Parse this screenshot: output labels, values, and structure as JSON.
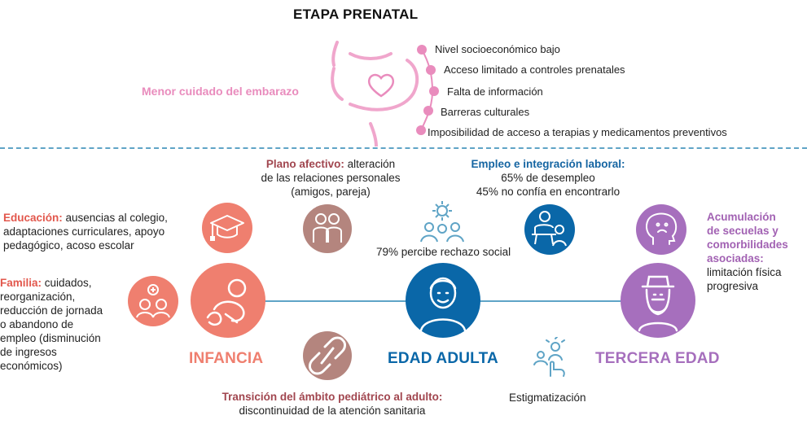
{
  "title": "ETAPA PRENATAL",
  "prenatal": {
    "label": "Menor cuidado del embarazo",
    "factors": [
      "Nivel socioeconómico bajo",
      "Acceso limitado a controles prenatales",
      "Falta de información",
      "Barreras culturales",
      "Imposibilidad de acceso a terapias y medicamentos preventivos"
    ]
  },
  "stages": {
    "infancia": "INFANCIA",
    "adulta": "EDAD ADULTA",
    "tercera": "TERCERA EDAD"
  },
  "plano": {
    "head": "Plano afectivo:",
    "line1": " alteración",
    "line2": "de las relaciones personales",
    "line3": "(amigos, pareja)"
  },
  "empleo": {
    "head": "Empleo e integración laboral:",
    "line1": "65% de desempleo",
    "line2": "45% no confía en encontrarlo"
  },
  "educacion": {
    "head": "Educación:",
    "line1": " ausencias al colegio,",
    "line2": "adaptaciones curriculares, apoyo",
    "line3": "pedagógico, acoso escolar"
  },
  "familia": {
    "head": "Familia:",
    "line1": " cuidados,",
    "lines": [
      "reorganización,",
      "reducción de jornada",
      "o abandono de",
      "empleo (disminución",
      "de ingresos",
      "económicos)"
    ]
  },
  "rechazo": "79% percibe rechazo social",
  "acumulacion": {
    "head": [
      "Acumulación",
      "de secuelas y",
      "comorbilidades",
      "asociadas:"
    ],
    "lines": [
      "limitación física",
      "progresiva"
    ]
  },
  "transicion": {
    "head": "Transición del ámbito pediátrico al adulto:",
    "line": "discontinuidad de la atención sanitaria"
  },
  "estigmatizacion": "Estigmatización",
  "colors": {
    "pink": "#e98cbd",
    "infancia": "#ef7f6f",
    "adulta": "#0a67a8",
    "tercera": "#a66fbd",
    "brown": "#b4857e",
    "dashed": "#5fa4c6"
  }
}
